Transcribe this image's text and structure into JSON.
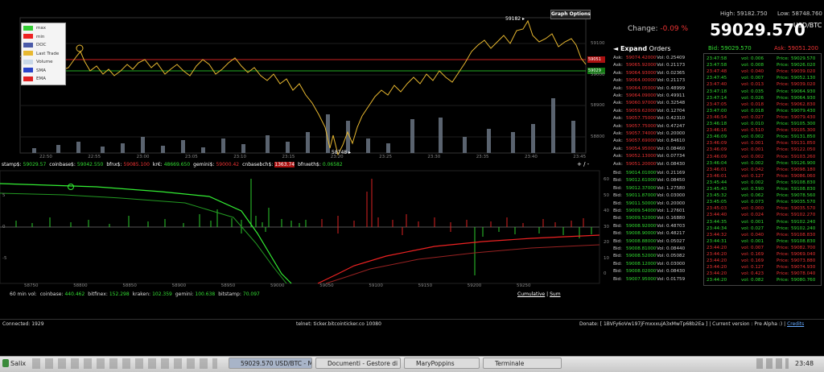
{
  "price_chart": {
    "button": "Graph Options",
    "legend": [
      {
        "label": "max",
        "color": "#33cc33"
      },
      {
        "label": "min",
        "color": "#ee2222"
      },
      {
        "label": "DOC",
        "color": "#4a5aa8"
      },
      {
        "label": "Last Trade",
        "color": "#e8b830"
      },
      {
        "label": "Volume",
        "color": "#c8d8e8"
      },
      {
        "label": "SMA",
        "color": "#2a44c8"
      },
      {
        "label": "EMA",
        "color": "#e02020"
      }
    ],
    "y_labels": [
      "59100",
      "59000",
      "58900",
      "58800"
    ],
    "x_labels": [
      "22:50",
      "22:55",
      "23:00",
      "23:05",
      "23:10",
      "23:15",
      "23:20",
      "23:25",
      "23:30",
      "23:35",
      "23:40",
      "23:45"
    ],
    "high_marker": "59182 ▸",
    "low_marker": "58748 ▸",
    "tags": [
      "59051",
      "59029"
    ]
  },
  "exchanges": [
    {
      "label": "stamp$:",
      "value": "59029.57",
      "color": "#33dd33"
    },
    {
      "label": "coinbase$:",
      "value": "59042.550",
      "color": "#33dd33"
    },
    {
      "label": "bfnx$:",
      "value": "59085.100",
      "color": "#ee3333"
    },
    {
      "label": "kr€:",
      "value": "48669.650",
      "color": "#33dd33"
    },
    {
      "label": "gemini$:",
      "value": "59000.42",
      "color": "#ee3333"
    },
    {
      "label": "cnbasebch$:",
      "value": "1363.74",
      "color": "#ff8888"
    },
    {
      "label": "bfnxeth$:",
      "value": "0.06582",
      "color": "#33dd33"
    }
  ],
  "zoom": "+ / -",
  "depth_chart": {
    "x_labels": [
      "58750",
      "58800",
      "58850",
      "58900",
      "58950",
      "59000",
      "59050",
      "59100",
      "59150",
      "59200",
      "59250"
    ],
    "y_right": [
      "60",
      "50",
      "40",
      "30",
      "20",
      "10",
      "0"
    ],
    "y_left": [
      "5",
      "0",
      "-5"
    ]
  },
  "volumes": {
    "label": "60 min vol:",
    "items": [
      {
        "label": "coinbase:",
        "value": "440.462"
      },
      {
        "label": "bitfinex:",
        "value": "152.298"
      },
      {
        "label": "kraken:",
        "value": "102.359"
      },
      {
        "label": "gemini:",
        "value": "100.638"
      },
      {
        "label": "bitstamp:",
        "value": "70.097"
      }
    ]
  },
  "depth_modes": [
    "Cumulative",
    "Sum"
  ],
  "orders": {
    "expand": "◄ Expand",
    "title": "Orders",
    "ask_label": "Ask:",
    "bid_label": "Bid:",
    "vol_label": "Vol:",
    "asks": [
      {
        "price": "59074.42000",
        "vol": "0.25409"
      },
      {
        "price": "59065.92000",
        "vol": "0.21173"
      },
      {
        "price": "59064.93000",
        "vol": "0.02365"
      },
      {
        "price": "59064.00000",
        "vol": "0.21173"
      },
      {
        "price": "59064.05000",
        "vol": "0.48999"
      },
      {
        "price": "59064.09000",
        "vol": "0.49911"
      },
      {
        "price": "59060.97000",
        "vol": "0.32548"
      },
      {
        "price": "59059.62000",
        "vol": "0.12704"
      },
      {
        "price": "59057.75000",
        "vol": "0.42310"
      },
      {
        "price": "59057.75000",
        "vol": "0.47247"
      },
      {
        "price": "59057.74000",
        "vol": "0.20000"
      },
      {
        "price": "59057.69000",
        "vol": "0.84610"
      },
      {
        "price": "59054.95000",
        "vol": "0.08460"
      },
      {
        "price": "59052.13000",
        "vol": "0.07734"
      },
      {
        "price": "59051.20000",
        "vol": "0.08430"
      }
    ],
    "bids": [
      {
        "price": "59014.01000",
        "vol": "0.21169"
      },
      {
        "price": "59012.61000",
        "vol": "0.08450"
      },
      {
        "price": "59012.37000",
        "vol": "1.27580"
      },
      {
        "price": "59011.87000",
        "vol": "0.03000"
      },
      {
        "price": "59011.50000",
        "vol": "0.20000"
      },
      {
        "price": "59009.54000",
        "vol": "1.27601"
      },
      {
        "price": "59009.52000",
        "vol": "0.16880"
      },
      {
        "price": "59008.92000",
        "vol": "0.48703"
      },
      {
        "price": "59008.90000",
        "vol": "0.48217"
      },
      {
        "price": "59008.88000",
        "vol": "0.05027"
      },
      {
        "price": "59008.81000",
        "vol": "0.08440"
      },
      {
        "price": "59008.52000",
        "vol": "0.05082"
      },
      {
        "price": "59008.12000",
        "vol": "0.03000"
      },
      {
        "price": "59008.02000",
        "vol": "0.08430"
      },
      {
        "price": "59007.95000",
        "vol": "0.01759"
      }
    ]
  },
  "ticker": {
    "high_label": "High:",
    "high": "59182.750",
    "low_label": "Low:",
    "low": "58748.760",
    "change_label": "Change:",
    "change": "-0.09 %",
    "last": "59029.570",
    "unit": "USD/BTC",
    "bid_label": "Bid:",
    "bid": "59029.570",
    "ask_label": "Ask:",
    "ask": "59051.200"
  },
  "trades": {
    "vol_label": "vol:",
    "price_label": "Price:",
    "rows": [
      {
        "time": "23:47:58",
        "vol": "0.006",
        "price": "59029.570",
        "color": "#33dd33"
      },
      {
        "time": "23:47:58",
        "vol": "0.008",
        "price": "59026.020",
        "color": "#33dd33"
      },
      {
        "time": "23:47:48",
        "vol": "0.040",
        "price": "59039.020",
        "color": "#ee3333"
      },
      {
        "time": "23:47:45",
        "vol": "0.007",
        "price": "59052.130",
        "color": "#33dd33"
      },
      {
        "time": "23:47:40",
        "vol": "0.013",
        "price": "59039.020",
        "color": "#ee3333"
      },
      {
        "time": "23:47:18",
        "vol": "0.035",
        "price": "59064.930",
        "color": "#33dd33"
      },
      {
        "time": "23:47:14",
        "vol": "0.026",
        "price": "59064.930",
        "color": "#33dd33"
      },
      {
        "time": "23:47:05",
        "vol": "0.018",
        "price": "59062.830",
        "color": "#ee3333"
      },
      {
        "time": "23:47:00",
        "vol": "0.018",
        "price": "59079.430",
        "color": "#33dd33"
      },
      {
        "time": "23:46:54",
        "vol": "0.027",
        "price": "59079.430",
        "color": "#ee3333"
      },
      {
        "time": "23:46:18",
        "vol": "0.010",
        "price": "59105.300",
        "color": "#33dd33"
      },
      {
        "time": "23:46:16",
        "vol": "0.510",
        "price": "59105.300",
        "color": "#ee3333"
      },
      {
        "time": "23:46:09",
        "vol": "0.002",
        "price": "59131.850",
        "color": "#33dd33"
      },
      {
        "time": "23:46:09",
        "vol": "0.001",
        "price": "59131.850",
        "color": "#ee3333"
      },
      {
        "time": "23:46:09",
        "vol": "0.001",
        "price": "59122.050",
        "color": "#ee3333"
      },
      {
        "time": "23:46:09",
        "vol": "0.002",
        "price": "59103.260",
        "color": "#ee3333"
      },
      {
        "time": "23:46:04",
        "vol": "0.002",
        "price": "59126.900",
        "color": "#33dd33"
      },
      {
        "time": "23:46:01",
        "vol": "0.042",
        "price": "59098.180",
        "color": "#ee3333"
      },
      {
        "time": "23:46:01",
        "vol": "0.127",
        "price": "59086.060",
        "color": "#ee3333"
      },
      {
        "time": "23:45:44",
        "vol": "0.002",
        "price": "59108.830",
        "color": "#33dd33"
      },
      {
        "time": "23:45:43",
        "vol": "0.590",
        "price": "59108.830",
        "color": "#33dd33"
      },
      {
        "time": "23:45:32",
        "vol": "0.062",
        "price": "59078.560",
        "color": "#33dd33"
      },
      {
        "time": "23:45:05",
        "vol": "0.073",
        "price": "59035.570",
        "color": "#33dd33"
      },
      {
        "time": "23:45:03",
        "vol": "0.000",
        "price": "59035.570",
        "color": "#ee3333"
      },
      {
        "time": "23:44:40",
        "vol": "0.024",
        "price": "59102.270",
        "color": "#ee3333"
      },
      {
        "time": "23:44:35",
        "vol": "0.001",
        "price": "59102.240",
        "color": "#33dd33"
      },
      {
        "time": "23:44:34",
        "vol": "0.027",
        "price": "59102.240",
        "color": "#33dd33"
      },
      {
        "time": "23:44:32",
        "vol": "0.040",
        "price": "59108.830",
        "color": "#ee3333"
      },
      {
        "time": "23:44:31",
        "vol": "0.001",
        "price": "59108.830",
        "color": "#33dd33"
      },
      {
        "time": "23:44:20",
        "vol": "0.007",
        "price": "59082.700",
        "color": "#ee3333"
      },
      {
        "time": "23:44:20",
        "vol": "0.169",
        "price": "59069.040",
        "color": "#ee3333"
      },
      {
        "time": "23:44:20",
        "vol": "0.169",
        "price": "59073.880",
        "color": "#ee3333"
      },
      {
        "time": "23:44:20",
        "vol": "0.127",
        "price": "59074.930",
        "color": "#ee3333"
      },
      {
        "time": "23:44:20",
        "vol": "0.423",
        "price": "59078.040",
        "color": "#ee3333"
      },
      {
        "time": "23:44:20",
        "vol": "0.082",
        "price": "59080.760",
        "color": "#33dd33"
      }
    ]
  },
  "status": {
    "connected": "Connected: 1929",
    "telnet": "telnet: ticker.bitcointicker.co 10080",
    "donate": "Donate: [ 1BVFy6oVw197jFmxxxujA3xMwTp68b2Ea ] | Current version : Pre Alpha :) |",
    "credits": "Credits"
  },
  "taskbar": {
    "start": "Salix",
    "windows": [
      "59029.570 USD/BTC - M...",
      "Documenti - Gestore di ...",
      "MaryPoppins",
      "Terminale"
    ],
    "clock": "23:48"
  }
}
